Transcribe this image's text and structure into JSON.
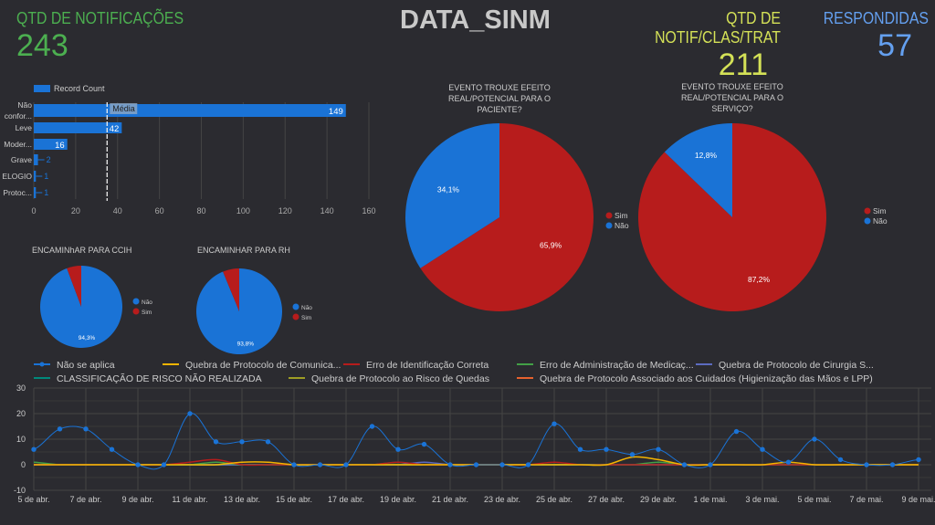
{
  "header": {
    "title": "DATA_SINM",
    "kpis": [
      {
        "label": "QTD DE NOTIFICAÇÕES",
        "value": "243",
        "color": "#4caf50"
      },
      {
        "label": "QTD DE NOTIF/CLAS/TRAT",
        "value": "211",
        "color": "#d4e157"
      },
      {
        "label": "RESPONDIDAS",
        "value": "57",
        "color": "#64a0f0"
      }
    ]
  },
  "colors": {
    "blue": "#1a73d6",
    "red": "#b71c1c",
    "background": "#2b2b30"
  },
  "chart_data": [
    {
      "type": "bar",
      "orientation": "horizontal",
      "legend": [
        "Record Count"
      ],
      "legend_placement": "top-left",
      "categories": [
        "Não confor...",
        "Leve",
        "Moder...",
        "Grave",
        "ELOGIO",
        "Protoc..."
      ],
      "values": [
        149,
        42,
        16,
        2,
        1,
        1
      ],
      "xlim": [
        0,
        160
      ],
      "xticks": [
        0,
        20,
        40,
        60,
        80,
        100,
        120,
        140,
        160
      ],
      "reference_line": {
        "label": "Média",
        "value": 35
      },
      "grid": true
    },
    {
      "type": "pie",
      "title": "ENCAMINhAR PARA CCIH",
      "labels": [
        "Não",
        "Sim"
      ],
      "values": [
        94.3,
        5.7
      ],
      "data_labels": [
        "94,3%",
        ""
      ],
      "colors": [
        "#1a73d6",
        "#b71c1c"
      ],
      "legend": [
        "Não",
        "Sim"
      ]
    },
    {
      "type": "pie",
      "title": "ENCAMINHAR PARA RH",
      "labels": [
        "Não",
        "Sim"
      ],
      "values": [
        93.8,
        6.2
      ],
      "data_labels": [
        "93,8%",
        ""
      ],
      "colors": [
        "#1a73d6",
        "#b71c1c"
      ],
      "legend": [
        "Não",
        "Sim"
      ]
    },
    {
      "type": "pie",
      "title": "EVENTO TROUXE EFEITO REAL/POTENCIAL PARA O PACIENTE?",
      "labels": [
        "Sim",
        "Não"
      ],
      "values": [
        65.9,
        34.1
      ],
      "data_labels": [
        "65,9%",
        "34,1%"
      ],
      "colors": [
        "#b71c1c",
        "#1a73d6"
      ],
      "legend": [
        "Sim",
        "Não"
      ]
    },
    {
      "type": "pie",
      "title": "EVENTO TROUXE EFEITO REAL/POTENCIAL PARA O SERVIÇO?",
      "labels": [
        "Sim",
        "Não"
      ],
      "values": [
        87.2,
        12.8
      ],
      "data_labels": [
        "87,2%",
        "12,8%"
      ],
      "colors": [
        "#b71c1c",
        "#1a73d6"
      ],
      "legend": [
        "Sim",
        "Não"
      ]
    },
    {
      "type": "line",
      "smooth": true,
      "ylim": [
        -10,
        30
      ],
      "yticks": [
        -10,
        0,
        10,
        20,
        30
      ],
      "grid": true,
      "legend_placement": "top",
      "x": [
        "5 de abr.",
        "6 de abr.",
        "7 de abr.",
        "8 de abr.",
        "9 de abr.",
        "10 de abr.",
        "11 de abr.",
        "12 de abr.",
        "13 de abr.",
        "14 de abr.",
        "15 de abr.",
        "16 de abr.",
        "17 de abr.",
        "18 de abr.",
        "19 de abr.",
        "20 de abr.",
        "21 de abr.",
        "22 de abr.",
        "23 de abr.",
        "24 de abr.",
        "25 de abr.",
        "26 de abr.",
        "27 de abr.",
        "28 de abr.",
        "29 de abr.",
        "30 de abr.",
        "1 de mai.",
        "2 de mai.",
        "3 de mai.",
        "4 de mai.",
        "5 de mai.",
        "6 de mai.",
        "7 de mai.",
        "8 de mai.",
        "9 de mai."
      ],
      "xtick_labels": [
        "5 de abr.",
        "7 de abr.",
        "9 de abr.",
        "11 de abr.",
        "13 de abr.",
        "15 de abr.",
        "17 de abr.",
        "19 de abr.",
        "21 de abr.",
        "23 de abr.",
        "25 de abr.",
        "27 de abr.",
        "29 de abr.",
        "1 de mai.",
        "3 de mai.",
        "5 de mai.",
        "7 de mai.",
        "9 de mai."
      ],
      "series": [
        {
          "name": "Não se aplica",
          "color": "#1a73d6",
          "markers": true,
          "values": [
            6,
            14,
            14,
            6,
            0,
            0,
            20,
            9,
            9,
            9,
            0,
            0,
            0,
            15,
            6,
            8,
            0,
            0,
            0,
            0,
            16,
            6,
            6,
            4,
            6,
            0,
            0,
            13,
            6,
            1,
            10,
            2,
            0,
            0,
            2
          ]
        },
        {
          "name": "Quebra de Protocolo de Comunica...",
          "color": "#f4b400",
          "values": [
            0,
            0,
            0,
            0,
            0,
            0,
            0,
            0,
            1,
            1,
            0,
            0,
            0,
            0,
            0,
            0,
            0,
            0,
            0,
            0,
            0,
            0,
            0,
            3,
            2,
            0,
            0,
            0,
            0,
            1,
            0,
            0,
            0,
            0,
            0
          ]
        },
        {
          "name": "Erro de Identificação Correta",
          "color": "#b71c1c",
          "values": [
            0,
            0,
            0,
            0,
            0,
            0,
            1,
            2,
            0,
            0,
            0,
            0,
            0,
            0,
            1,
            0,
            0,
            0,
            0,
            0,
            1,
            0,
            0,
            0,
            0,
            0,
            0,
            0,
            0,
            0,
            0,
            0,
            0,
            0,
            0
          ]
        },
        {
          "name": "Erro de Administração de Medicaç...",
          "color": "#43a047",
          "values": [
            1,
            0,
            0,
            0,
            0,
            0,
            0,
            1,
            0,
            0,
            0,
            0,
            0,
            0,
            0,
            0,
            0,
            0,
            0,
            0,
            0,
            0,
            0,
            0,
            1,
            0,
            0,
            0,
            0,
            0,
            0,
            0,
            0,
            0,
            0
          ]
        },
        {
          "name": "Quebra de Protocolo de Cirurgia S...",
          "color": "#5c6bc0",
          "values": [
            0,
            0,
            0,
            0,
            0,
            0,
            0,
            0,
            0,
            0,
            0,
            0,
            0,
            0,
            0,
            1,
            0,
            0,
            0,
            0,
            0,
            0,
            0,
            0,
            0,
            0,
            0,
            0,
            0,
            0,
            0,
            0,
            0,
            0,
            0
          ]
        },
        {
          "name": "CLASSIFICAÇÃO DE RISCO NÃO REALIZADA",
          "color": "#00897b",
          "values": [
            0,
            0,
            0,
            0,
            0,
            0,
            0,
            0,
            0,
            0,
            0,
            0,
            0,
            0,
            1,
            0,
            0,
            0,
            0,
            0,
            0,
            0,
            0,
            0,
            0,
            0,
            0,
            0,
            0,
            0,
            0,
            0,
            0,
            0,
            0
          ]
        },
        {
          "name": "Quebra de Protocolo ao Risco de Quedas",
          "color": "#9e9d24",
          "values": [
            0,
            0,
            0,
            0,
            0,
            0,
            0,
            0,
            0,
            0,
            0,
            0,
            0,
            0,
            0,
            0,
            0,
            0,
            0,
            0,
            0,
            0,
            0,
            0,
            0,
            0,
            0,
            0,
            0,
            0,
            0,
            0,
            0,
            0,
            0
          ]
        },
        {
          "name": "Quebra de Protocolo Associado aos Cuidados (Higienização das Mãos e LPP)",
          "color": "#e6612e",
          "values": [
            0,
            0,
            0,
            0,
            0,
            0,
            0,
            0,
            0,
            0,
            0,
            0,
            0,
            0,
            0,
            0,
            0,
            0,
            0,
            0,
            0,
            0,
            0,
            0,
            0,
            0,
            0,
            0,
            0,
            0,
            0,
            0,
            0,
            0,
            0
          ]
        }
      ]
    }
  ]
}
